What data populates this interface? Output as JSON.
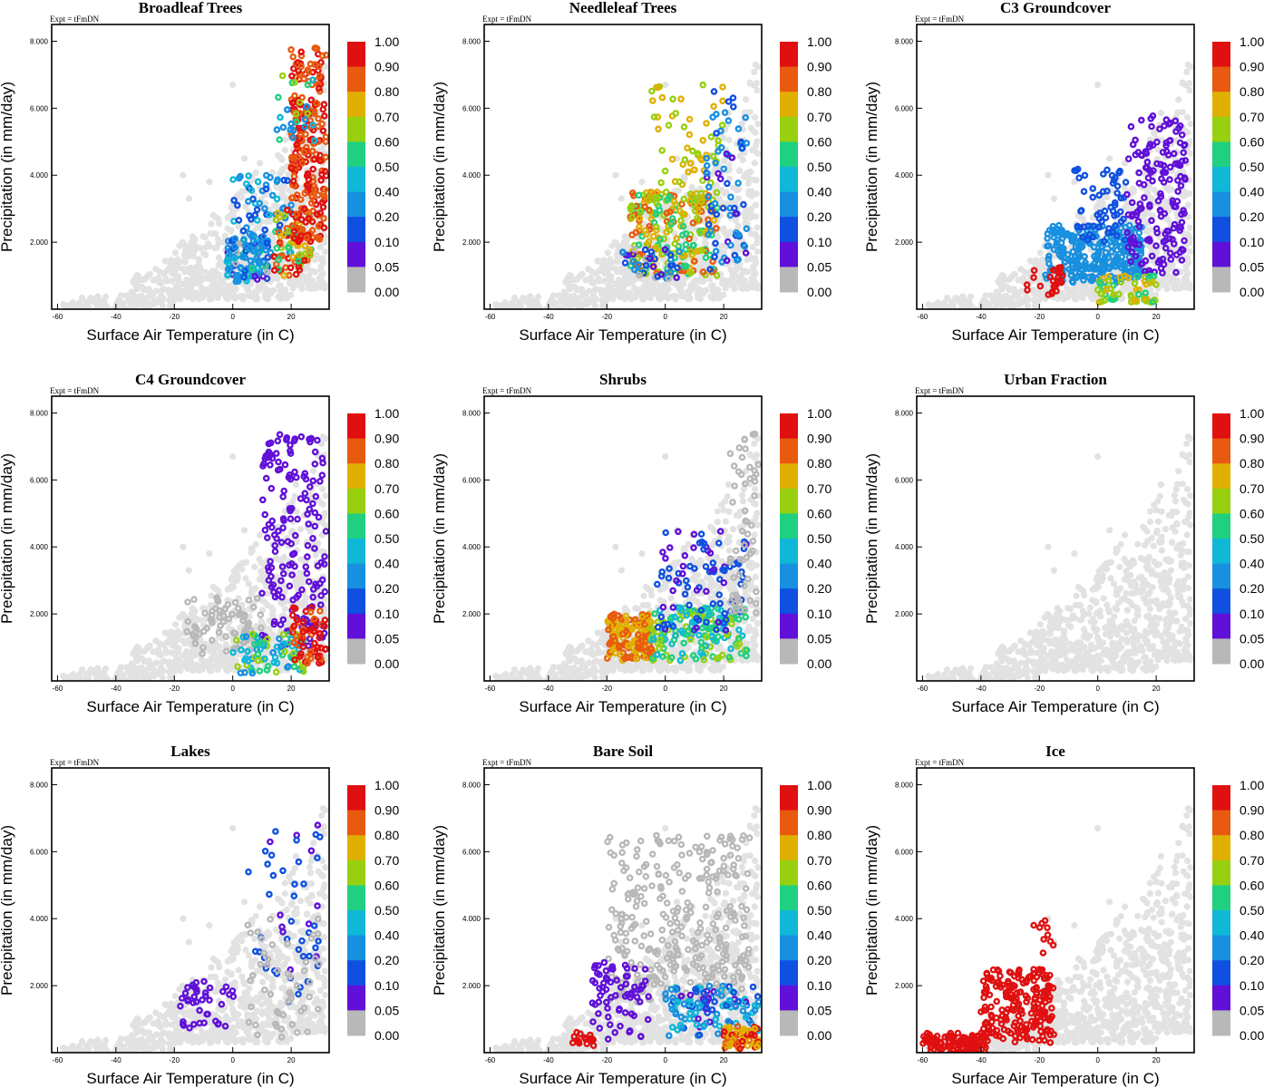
{
  "figure": {
    "expt_label": "Expt = tFmDN",
    "xlabel": "Surface Air Temperature (in C)",
    "ylabel": "Precipitation (in mm/day)"
  },
  "colorbar": {
    "labels": [
      "1.00",
      "0.90",
      "0.80",
      "0.70",
      "0.60",
      "0.50",
      "0.40",
      "0.20",
      "0.10",
      "0.05",
      "0.00"
    ],
    "colors": [
      "#e01010",
      "#e85a10",
      "#e0b000",
      "#98d010",
      "#20d080",
      "#10b8d8",
      "#1890e0",
      "#1050e0",
      "#6010d8",
      "#b8b8b8"
    ],
    "background_point_color": "#e2e2e2",
    "bin_edges": [
      1.0,
      0.9,
      0.8,
      0.7,
      0.6,
      0.5,
      0.4,
      0.2,
      0.1,
      0.05,
      0.0
    ]
  },
  "chart_data": [
    {
      "type": "scatter",
      "title": "Broadleaf Trees",
      "xlabel": "Surface Air Temperature (in C)",
      "ylabel": "Precipitation (in mm/day)",
      "xlim": [
        -62,
        33
      ],
      "ylim": [
        0,
        8.5
      ],
      "xticks": [
        "-60",
        "-40",
        "-20",
        "0",
        "20"
      ],
      "yticks": [
        "2.000",
        "4.000",
        "6.000",
        "8.000"
      ],
      "clusters": [
        {
          "x": [
            -2,
            12
          ],
          "y": [
            0.8,
            2.2
          ],
          "vmin": 0.0,
          "vmax": 0.6,
          "n": 110
        },
        {
          "x": [
            0,
            20
          ],
          "y": [
            1.5,
            4.0
          ],
          "vmin": 0.1,
          "vmax": 0.45,
          "n": 70
        },
        {
          "x": [
            14,
            27
          ],
          "y": [
            1.0,
            3.0
          ],
          "vmin": 0.5,
          "vmax": 1.0,
          "n": 80
        },
        {
          "x": [
            20,
            32
          ],
          "y": [
            2.0,
            7.8
          ],
          "vmin": 0.8,
          "vmax": 1.0,
          "n": 240
        },
        {
          "x": [
            15,
            28
          ],
          "y": [
            5.0,
            7.0
          ],
          "vmin": 0.2,
          "vmax": 0.8,
          "n": 25
        }
      ]
    },
    {
      "type": "scatter",
      "title": "Needleleaf Trees",
      "xlabel": "Surface Air Temperature (in C)",
      "ylabel": "Precipitation (in mm/day)",
      "xlim": [
        -62,
        33
      ],
      "ylim": [
        0,
        8.5
      ],
      "xticks": [
        "-60",
        "-40",
        "-20",
        "0",
        "20"
      ],
      "yticks": [
        "2.000",
        "4.000",
        "6.000",
        "8.000"
      ],
      "clusters": [
        {
          "x": [
            -12,
            18
          ],
          "y": [
            1.0,
            3.5
          ],
          "vmin": 0.5,
          "vmax": 0.9,
          "n": 230
        },
        {
          "x": [
            -5,
            20
          ],
          "y": [
            3.0,
            6.8
          ],
          "vmin": 0.6,
          "vmax": 0.8,
          "n": 60
        },
        {
          "x": [
            14,
            28
          ],
          "y": [
            1.0,
            6.5
          ],
          "vmin": 0.05,
          "vmax": 0.4,
          "n": 70
        },
        {
          "x": [
            -15,
            5
          ],
          "y": [
            0.9,
            1.8
          ],
          "vmin": 0.0,
          "vmax": 0.3,
          "n": 40
        }
      ]
    },
    {
      "type": "scatter",
      "title": "C3 Groundcover",
      "xlabel": "Surface Air Temperature (in C)",
      "ylabel": "Precipitation (in mm/day)",
      "xlim": [
        -62,
        33
      ],
      "ylim": [
        0,
        8.5
      ],
      "xticks": [
        "-60",
        "-40",
        "-20",
        "0",
        "20"
      ],
      "yticks": [
        "2.000",
        "4.000",
        "6.000",
        "8.000"
      ],
      "clusters": [
        {
          "x": [
            -18,
            15
          ],
          "y": [
            0.8,
            2.5
          ],
          "vmin": 0.2,
          "vmax": 0.4,
          "n": 280
        },
        {
          "x": [
            -8,
            10
          ],
          "y": [
            2.0,
            4.2
          ],
          "vmin": 0.1,
          "vmax": 0.2,
          "n": 60
        },
        {
          "x": [
            10,
            30
          ],
          "y": [
            1.0,
            5.8
          ],
          "vmin": 0.05,
          "vmax": 0.1,
          "n": 160
        },
        {
          "x": [
            0,
            20
          ],
          "y": [
            0.2,
            1.0
          ],
          "vmin": 0.5,
          "vmax": 0.8,
          "n": 60
        },
        {
          "x": [
            -25,
            -12
          ],
          "y": [
            0.3,
            1.3
          ],
          "vmin": 0.9,
          "vmax": 1.0,
          "n": 25
        }
      ]
    },
    {
      "type": "scatter",
      "title": "C4 Groundcover",
      "xlabel": "Surface Air Temperature (in C)",
      "ylabel": "Precipitation (in mm/day)",
      "xlim": [
        -62,
        33
      ],
      "ylim": [
        0,
        8.5
      ],
      "xticks": [
        "-60",
        "-40",
        "-20",
        "0",
        "20"
      ],
      "yticks": [
        "2.000",
        "4.000",
        "6.000",
        "8.000"
      ],
      "clusters": [
        {
          "x": [
            -18,
            10
          ],
          "y": [
            0.8,
            2.5
          ],
          "vmin": 0.0,
          "vmax": 0.04,
          "n": 70
        },
        {
          "x": [
            10,
            32
          ],
          "y": [
            1.0,
            7.5
          ],
          "vmin": 0.05,
          "vmax": 0.1,
          "n": 170
        },
        {
          "x": [
            0,
            25
          ],
          "y": [
            0.2,
            1.4
          ],
          "vmin": 0.3,
          "vmax": 0.7,
          "n": 80
        },
        {
          "x": [
            20,
            32
          ],
          "y": [
            0.5,
            2.2
          ],
          "vmin": 0.8,
          "vmax": 1.0,
          "n": 60
        }
      ]
    },
    {
      "type": "scatter",
      "title": "Shrubs",
      "xlabel": "Surface Air Temperature (in C)",
      "ylabel": "Precipitation (in mm/day)",
      "xlim": [
        -62,
        33
      ],
      "ylim": [
        0,
        8.5
      ],
      "xticks": [
        "-60",
        "-40",
        "-20",
        "0",
        "20"
      ],
      "yticks": [
        "2.000",
        "4.000",
        "6.000",
        "8.000"
      ],
      "clusters": [
        {
          "x": [
            -20,
            -4
          ],
          "y": [
            0.6,
            2.0
          ],
          "vmin": 0.7,
          "vmax": 0.9,
          "n": 150
        },
        {
          "x": [
            -5,
            28
          ],
          "y": [
            0.6,
            2.2
          ],
          "vmin": 0.4,
          "vmax": 0.7,
          "n": 170
        },
        {
          "x": [
            -3,
            28
          ],
          "y": [
            1.5,
            4.5
          ],
          "vmin": 0.05,
          "vmax": 0.2,
          "n": 90
        },
        {
          "x": [
            22,
            32
          ],
          "y": [
            2.0,
            7.5
          ],
          "vmin": 0.0,
          "vmax": 0.04,
          "n": 60
        }
      ]
    },
    {
      "type": "scatter",
      "title": "Urban Fraction",
      "xlabel": "Surface Air Temperature (in C)",
      "ylabel": "Precipitation (in mm/day)",
      "xlim": [
        -62,
        33
      ],
      "ylim": [
        0,
        8.5
      ],
      "xticks": [
        "-60",
        "-40",
        "-20",
        "0",
        "20"
      ],
      "yticks": [
        "2.000",
        "4.000",
        "6.000",
        "8.000"
      ],
      "clusters": []
    },
    {
      "type": "scatter",
      "title": "Lakes",
      "xlabel": "Surface Air Temperature (in C)",
      "ylabel": "Precipitation (in mm/day)",
      "xlim": [
        -62,
        33
      ],
      "ylim": [
        0,
        8.5
      ],
      "xticks": [
        "-60",
        "-40",
        "-20",
        "0",
        "20"
      ],
      "yticks": [
        "2.000",
        "4.000",
        "6.000",
        "8.000"
      ],
      "clusters": [
        {
          "x": [
            -18,
            2
          ],
          "y": [
            0.7,
            2.2
          ],
          "vmin": 0.05,
          "vmax": 0.1,
          "n": 40
        },
        {
          "x": [
            5,
            30
          ],
          "y": [
            1.5,
            6.8
          ],
          "vmin": 0.05,
          "vmax": 0.2,
          "n": 50
        },
        {
          "x": [
            5,
            30
          ],
          "y": [
            0.3,
            4.0
          ],
          "vmin": 0.0,
          "vmax": 0.04,
          "n": 50
        }
      ]
    },
    {
      "type": "scatter",
      "title": "Bare Soil",
      "xlabel": "Surface Air Temperature (in C)",
      "ylabel": "Precipitation (in mm/day)",
      "xlim": [
        -62,
        33
      ],
      "ylim": [
        0,
        8.5
      ],
      "xticks": [
        "-60",
        "-40",
        "-20",
        "0",
        "20"
      ],
      "yticks": [
        "2.000",
        "4.000",
        "6.000",
        "8.000"
      ],
      "clusters": [
        {
          "x": [
            -20,
            30
          ],
          "y": [
            1.5,
            6.5
          ],
          "vmin": 0.0,
          "vmax": 0.04,
          "n": 320
        },
        {
          "x": [
            -25,
            -5
          ],
          "y": [
            0.4,
            2.7
          ],
          "vmin": 0.05,
          "vmax": 0.1,
          "n": 70
        },
        {
          "x": [
            0,
            32
          ],
          "y": [
            0.5,
            2.0
          ],
          "vmin": 0.05,
          "vmax": 0.5,
          "n": 120
        },
        {
          "x": [
            20,
            32
          ],
          "y": [
            0.1,
            0.8
          ],
          "vmin": 0.7,
          "vmax": 1.0,
          "n": 80
        },
        {
          "x": [
            -32,
            -20
          ],
          "y": [
            0.2,
            0.7
          ],
          "vmin": 0.9,
          "vmax": 1.0,
          "n": 15
        }
      ]
    },
    {
      "type": "scatter",
      "title": "Ice",
      "xlabel": "Surface Air Temperature (in C)",
      "ylabel": "Precipitation (in mm/day)",
      "xlim": [
        -62,
        33
      ],
      "ylim": [
        0,
        8.5
      ],
      "xticks": [
        "-60",
        "-40",
        "-20",
        "0",
        "20"
      ],
      "yticks": [
        "2.000",
        "4.000",
        "6.000",
        "8.000"
      ],
      "clusters": [
        {
          "x": [
            -60,
            -38
          ],
          "y": [
            0.0,
            0.6
          ],
          "vmin": 0.95,
          "vmax": 1.0,
          "n": 100
        },
        {
          "x": [
            -40,
            -15
          ],
          "y": [
            0.3,
            2.5
          ],
          "vmin": 0.95,
          "vmax": 1.0,
          "n": 200
        },
        {
          "x": [
            -22,
            -15
          ],
          "y": [
            2.2,
            4.0
          ],
          "vmin": 0.95,
          "vmax": 1.0,
          "n": 15
        }
      ]
    }
  ]
}
